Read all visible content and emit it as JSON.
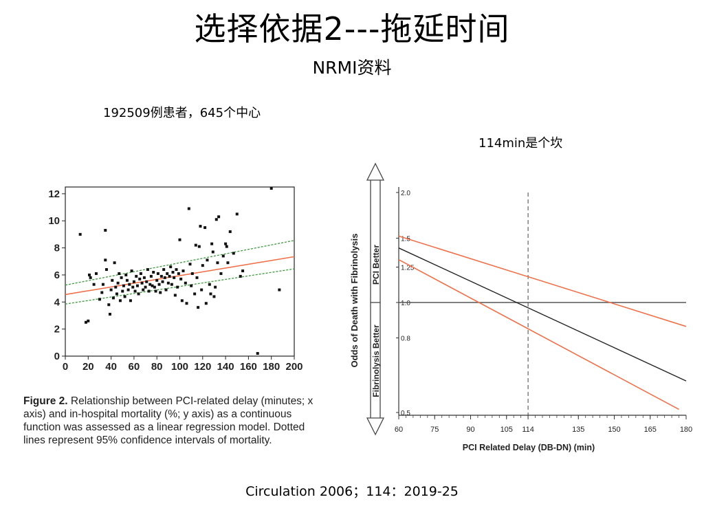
{
  "slide": {
    "title": "选择依据2---拖延时间",
    "subtitle": "NRMI资料",
    "note_patients": "192509例患者，645个中心",
    "note_threshold": "114min是个坎",
    "citation": "Circulation 2006；114：2019-25"
  },
  "figure_caption": {
    "label": "Figure 2.",
    "text": "Relationship between PCI-related delay (minutes; x axis) and in-hospital mortality (%; y axis) as a continuous function was assessed as a linear regression model. Dotted lines represent 95% confidence intervals of mortality."
  },
  "colors": {
    "regression": "#f0704a",
    "ci_dotted": "#3a9a3a",
    "points": "#111111",
    "estimate": "#222222",
    "ci_band": "#f0704a",
    "reference": "#555555"
  },
  "chart_data": [
    {
      "type": "scatter",
      "title": "",
      "xlabel": "",
      "ylabel": "",
      "xlim": [
        0,
        200
      ],
      "ylim": [
        0,
        12.5
      ],
      "xticks": [
        "0",
        "20",
        "40",
        "60",
        "80",
        "100",
        "120",
        "140",
        "160",
        "180",
        "200"
      ],
      "yticks": [
        "0",
        "2",
        "4",
        "6",
        "8",
        "10",
        "12"
      ],
      "grid": false,
      "points": [
        [
          13,
          9
        ],
        [
          18,
          2.5
        ],
        [
          20,
          2.6
        ],
        [
          21,
          6
        ],
        [
          22,
          5.8
        ],
        [
          25,
          5.3
        ],
        [
          27,
          6.1
        ],
        [
          30,
          4.2
        ],
        [
          32,
          4.7
        ],
        [
          33,
          5.3
        ],
        [
          35,
          7.1
        ],
        [
          35,
          9.3
        ],
        [
          36,
          6.4
        ],
        [
          38,
          3.8
        ],
        [
          39,
          3.1
        ],
        [
          40,
          4.9
        ],
        [
          41,
          5.6
        ],
        [
          42,
          4.3
        ],
        [
          43,
          6.9
        ],
        [
          44,
          5.1
        ],
        [
          45,
          4.6
        ],
        [
          46,
          5.4
        ],
        [
          47,
          6.1
        ],
        [
          48,
          4.1
        ],
        [
          49,
          5.8
        ],
        [
          50,
          4.8
        ],
        [
          51,
          5.2
        ],
        [
          52,
          4.4
        ],
        [
          53,
          6
        ],
        [
          54,
          5.6
        ],
        [
          55,
          4.9
        ],
        [
          56,
          5.3
        ],
        [
          57,
          4.1
        ],
        [
          58,
          6.3
        ],
        [
          59,
          5.1
        ],
        [
          60,
          5.5
        ],
        [
          61,
          4.8
        ],
        [
          62,
          5.9
        ],
        [
          63,
          5.2
        ],
        [
          64,
          4.6
        ],
        [
          65,
          5.7
        ],
        [
          66,
          6.1
        ],
        [
          67,
          5.4
        ],
        [
          68,
          4.9
        ],
        [
          69,
          5.8
        ],
        [
          70,
          5.1
        ],
        [
          71,
          5.5
        ],
        [
          72,
          6.4
        ],
        [
          73,
          4.8
        ],
        [
          74,
          5.3
        ],
        [
          75,
          5.9
        ],
        [
          76,
          5.2
        ],
        [
          77,
          6.2
        ],
        [
          78,
          5.1
        ],
        [
          79,
          4.8
        ],
        [
          80,
          5.6
        ],
        [
          81,
          6.1
        ],
        [
          82,
          5.3
        ],
        [
          83,
          4.7
        ],
        [
          84,
          5.9
        ],
        [
          85,
          5.5
        ],
        [
          86,
          6.4
        ],
        [
          87,
          5.8
        ],
        [
          88,
          4.9
        ],
        [
          89,
          6.1
        ],
        [
          90,
          5.4
        ],
        [
          91,
          5.9
        ],
        [
          92,
          6.6
        ],
        [
          93,
          5.3
        ],
        [
          94,
          6.2
        ],
        [
          95,
          5.8
        ],
        [
          96,
          4.5
        ],
        [
          97,
          6.4
        ],
        [
          98,
          5.1
        ],
        [
          99,
          6.1
        ],
        [
          100,
          8.6
        ],
        [
          101,
          5.7
        ],
        [
          102,
          4.1
        ],
        [
          103,
          6.3
        ],
        [
          105,
          5.4
        ],
        [
          106,
          3.9
        ],
        [
          108,
          10.9
        ],
        [
          109,
          6.8
        ],
        [
          110,
          5.2
        ],
        [
          111,
          6.1
        ],
        [
          113,
          4.6
        ],
        [
          114,
          8.2
        ],
        [
          115,
          5.8
        ],
        [
          116,
          3.6
        ],
        [
          117,
          8.1
        ],
        [
          118,
          9.6
        ],
        [
          119,
          4.9
        ],
        [
          120,
          6.7
        ],
        [
          122,
          9.5
        ],
        [
          123,
          3.9
        ],
        [
          124,
          7.1
        ],
        [
          126,
          5.3
        ],
        [
          127,
          4.6
        ],
        [
          128,
          8.3
        ],
        [
          129,
          7.7
        ],
        [
          130,
          4.4
        ],
        [
          131,
          5.1
        ],
        [
          132,
          10.1
        ],
        [
          133,
          6.9
        ],
        [
          134,
          10.3
        ],
        [
          136,
          6.1
        ],
        [
          138,
          7.4
        ],
        [
          140,
          8.3
        ],
        [
          141,
          8.1
        ],
        [
          142,
          6.9
        ],
        [
          144,
          9.2
        ],
        [
          147,
          7.6
        ],
        [
          150,
          10.5
        ],
        [
          153,
          5.9
        ],
        [
          155,
          6.3
        ],
        [
          168,
          0.2
        ],
        [
          180,
          12.4
        ],
        [
          187,
          4.9
        ]
      ],
      "series": [
        {
          "name": "regression",
          "style": "solid",
          "x": [
            0,
            200
          ],
          "y": [
            4.55,
            7.35
          ]
        },
        {
          "name": "upper 95% CI",
          "style": "dotted",
          "x": [
            0,
            200
          ],
          "y": [
            5.25,
            8.55
          ]
        },
        {
          "name": "lower 95% CI",
          "style": "dotted",
          "x": [
            0,
            200
          ],
          "y": [
            3.85,
            6.45
          ]
        }
      ]
    },
    {
      "type": "line",
      "title": "",
      "xlabel": "PCI Related Delay (DB-DN) (min)",
      "ylabel": "Odds of Death with Fibrinolysis",
      "ylabel_upper": "PCI Better",
      "ylabel_lower": "Fibrinolysis Better",
      "xlim": [
        60,
        180
      ],
      "ylim": [
        0.5,
        2.0
      ],
      "yscale": "log",
      "xticks": [
        "60",
        "75",
        "90",
        "105",
        "114",
        "135",
        "150",
        "165",
        "180"
      ],
      "yticks": [
        "0.5",
        "0.8",
        "1.0",
        "1.25",
        "1.5",
        "2.0"
      ],
      "reference_y": 1.0,
      "vertical_marker_x": 114,
      "series": [
        {
          "name": "estimate",
          "x": [
            60,
            180
          ],
          "y": [
            1.41,
            0.61
          ]
        },
        {
          "name": "upper CI",
          "x": [
            60,
            180
          ],
          "y": [
            1.52,
            0.86
          ]
        },
        {
          "name": "lower CI",
          "x": [
            60,
            177
          ],
          "y": [
            1.31,
            0.51
          ]
        }
      ]
    }
  ]
}
